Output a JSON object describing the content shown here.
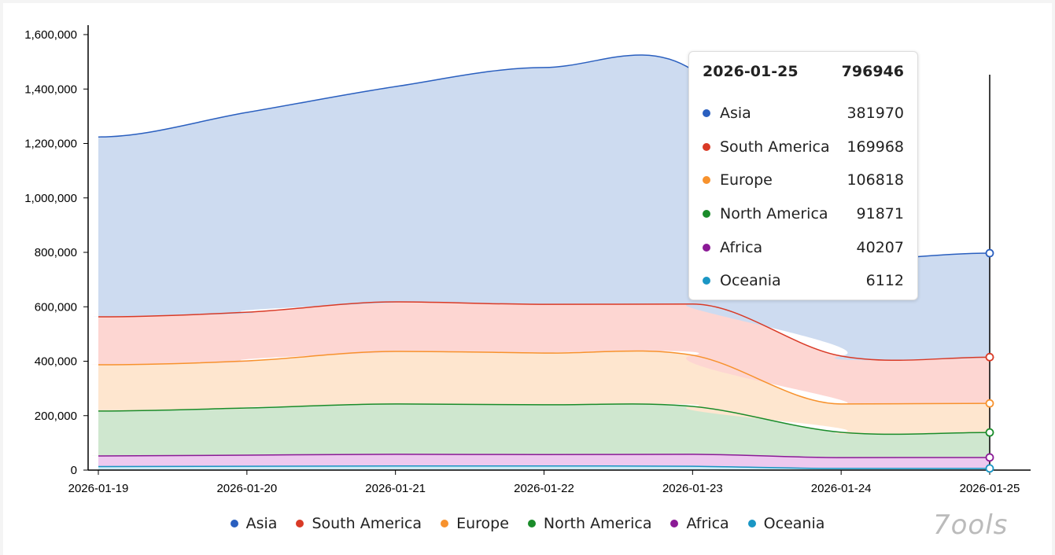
{
  "chart_data": {
    "type": "area",
    "stacked": true,
    "x": [
      "2026-01-19",
      "2026-01-20",
      "2026-01-21",
      "2026-01-22",
      "2026-01-23",
      "2026-01-24",
      "2026-01-25"
    ],
    "ylim": [
      0,
      1600000
    ],
    "yticks": [
      0,
      200000,
      400000,
      600000,
      800000,
      1000000,
      1200000,
      1400000,
      1600000
    ],
    "ytick_labels": [
      "0",
      "200,000",
      "400,000",
      "600,000",
      "800,000",
      "1,000,000",
      "1,200,000",
      "1,400,000",
      "1,600,000"
    ],
    "grid": false,
    "legend_placement": "bottom",
    "series": [
      {
        "name": "Asia",
        "color": "#2a5fbf",
        "fill": "#cddbf0",
        "values": [
          661000,
          734000,
          791000,
          870000,
          860000,
          351000,
          381970
        ]
      },
      {
        "name": "South America",
        "color": "#d93a26",
        "fill": "#fdd6d2",
        "values": [
          176000,
          179000,
          182000,
          179000,
          188000,
          176000,
          169968
        ]
      },
      {
        "name": "Europe",
        "color": "#f7922d",
        "fill": "#fee6cf",
        "values": [
          170000,
          173000,
          193000,
          190000,
          188000,
          104000,
          106818
        ]
      },
      {
        "name": "North America",
        "color": "#1a8c2a",
        "fill": "#cfe7cf",
        "values": [
          165000,
          173000,
          185000,
          183000,
          176000,
          93000,
          91871
        ]
      },
      {
        "name": "Africa",
        "color": "#8b1a96",
        "fill": "#edc9ef",
        "values": [
          39000,
          41000,
          43000,
          42000,
          44000,
          40000,
          40207
        ]
      },
      {
        "name": "Oceania",
        "color": "#1a96c4",
        "fill": "#cde9f4",
        "values": [
          13000,
          14000,
          15000,
          15000,
          14000,
          6000,
          6112
        ]
      }
    ],
    "tooltip": {
      "date": "2026-01-25",
      "total": "796946",
      "rows": [
        {
          "name": "Asia",
          "value": "381970",
          "color": "#2a5fbf"
        },
        {
          "name": "South America",
          "value": "169968",
          "color": "#d93a26"
        },
        {
          "name": "Europe",
          "value": "106818",
          "color": "#f7922d"
        },
        {
          "name": "North America",
          "value": "91871",
          "color": "#1a8c2a"
        },
        {
          "name": "Africa",
          "value": "40207",
          "color": "#8b1a96"
        },
        {
          "name": "Oceania",
          "value": "6112",
          "color": "#1a96c4"
        }
      ]
    }
  },
  "logo": "7ools"
}
